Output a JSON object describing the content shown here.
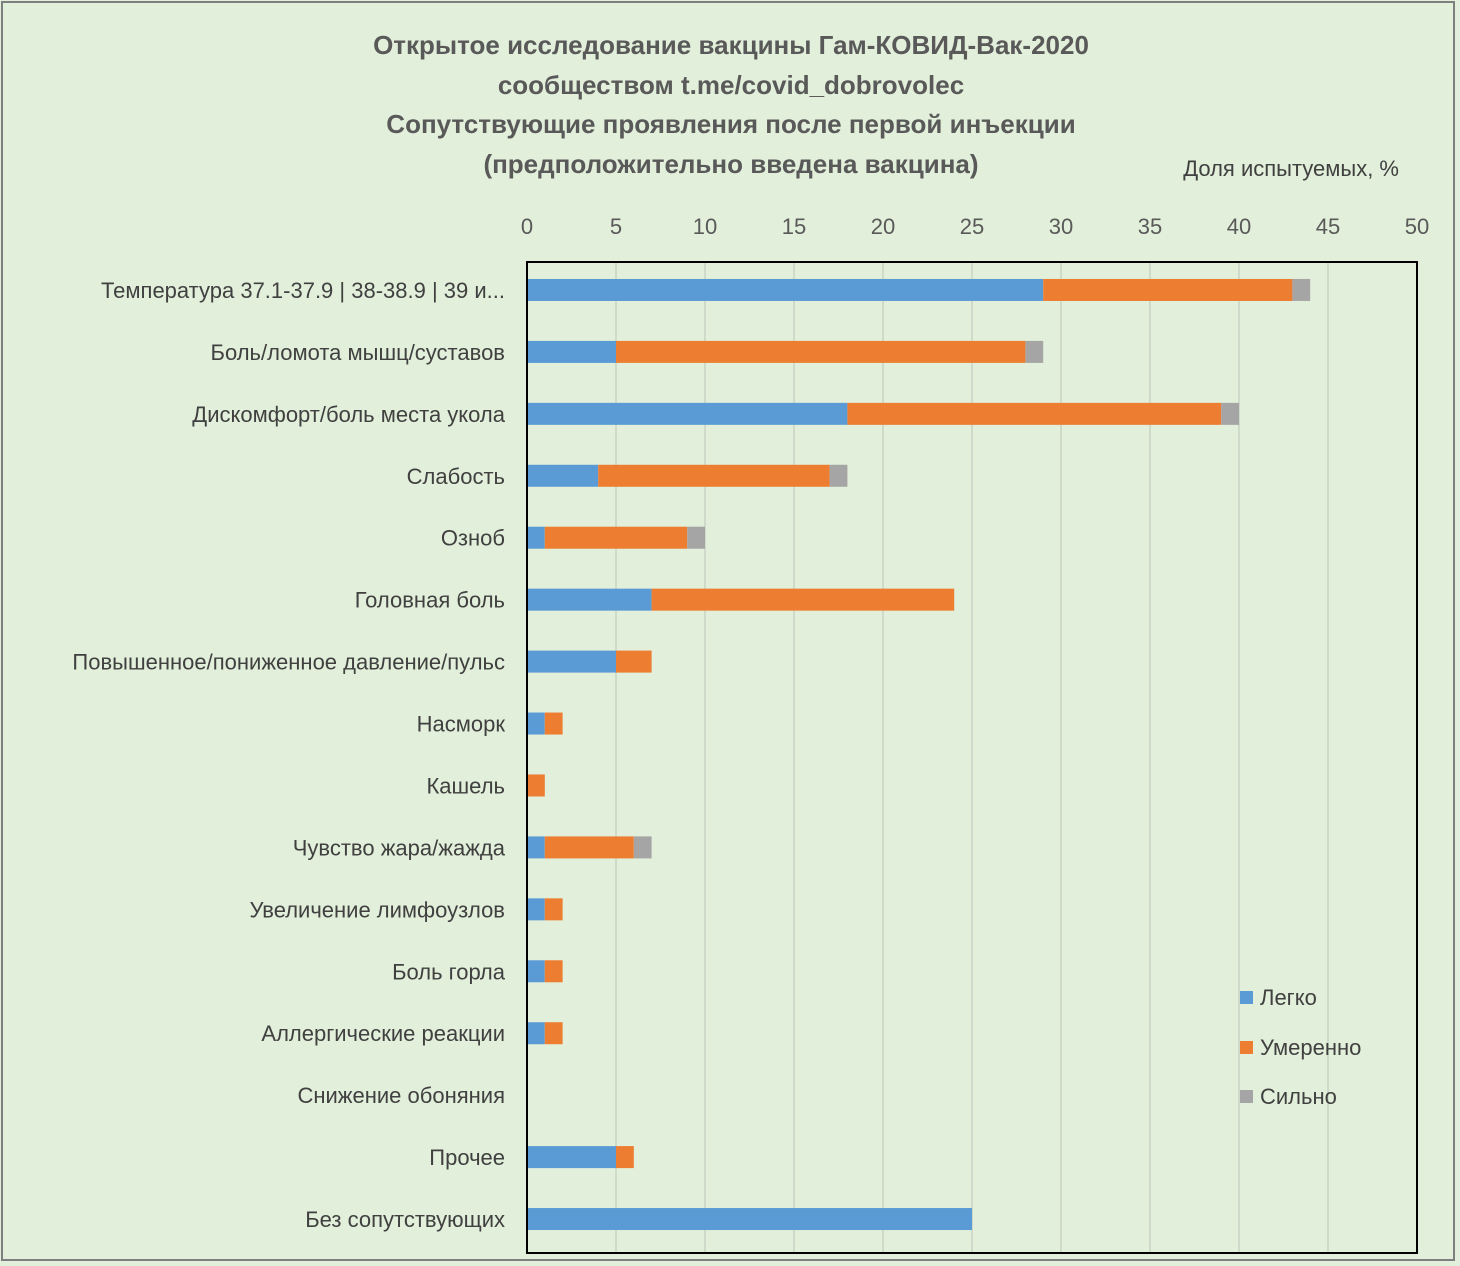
{
  "chart_data": {
    "type": "bar",
    "orientation": "horizontal",
    "stacked": true,
    "title_lines": [
      "Открытое исследование вакцины Гам-КОВИД-Вак-2020",
      "сообществом t.me/covid_dobrovolec",
      "Сопутствующие проявления после первой инъекции",
      "(предположительно введена вакцина)"
    ],
    "xlabel": "Доля испытуемых, %",
    "xlim": [
      0,
      50
    ],
    "xticks": [
      0,
      5,
      10,
      15,
      20,
      25,
      30,
      35,
      40,
      45,
      50
    ],
    "grid": true,
    "legend_position": "bottom-right",
    "categories": [
      "Температура 37.1-37.9 | 38-38.9 | 39 и...",
      "Боль/ломота мышц/суставов",
      "Дискомфорт/боль места укола",
      "Слабость",
      "Озноб",
      "Головная боль",
      "Повышенное/пониженное давление/пульс",
      "Насморк",
      "Кашель",
      "Чувство жара/жажда",
      "Увеличение лимфоузлов",
      "Боль горла",
      "Аллергические реакции",
      "Снижение обоняния",
      "Прочее",
      "Без сопутствующих"
    ],
    "series": [
      {
        "name": "Легко",
        "color": "#5b9bd5",
        "values": [
          29,
          5,
          18,
          4,
          1,
          7,
          5,
          1,
          0,
          1,
          1,
          1,
          1,
          0,
          5,
          25
        ]
      },
      {
        "name": "Умеренно",
        "color": "#ed7d31",
        "values": [
          14,
          23,
          21,
          13,
          8,
          17,
          2,
          1,
          1,
          5,
          1,
          1,
          1,
          0,
          1,
          0
        ]
      },
      {
        "name": "Сильно",
        "color": "#a5a5a5",
        "values": [
          1,
          1,
          1,
          1,
          1,
          0,
          0,
          0,
          0,
          1,
          0,
          0,
          0,
          0,
          0,
          0
        ]
      }
    ]
  }
}
